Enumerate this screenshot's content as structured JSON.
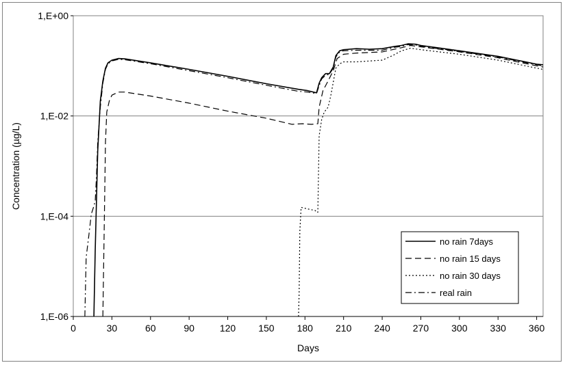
{
  "chart_data": {
    "type": "line",
    "title": "",
    "xlabel": "Days",
    "ylabel": "Concentration (µg/L)",
    "xlim": [
      0,
      365
    ],
    "ylim": [
      1e-06,
      1
    ],
    "y_scale": "log",
    "x_ticks": [
      "0",
      "30",
      "60",
      "90",
      "120",
      "150",
      "180",
      "210",
      "240",
      "270",
      "300",
      "330",
      "360"
    ],
    "y_ticks": [
      "1,E-06",
      "1,E-04",
      "1,E-02",
      "1,E+00"
    ],
    "y_tick_values": [
      1e-06,
      0.0001,
      0.01,
      1
    ],
    "grid": "horizontal",
    "legend_position": "right",
    "series": [
      {
        "name": "no rain 7days",
        "style": "solid",
        "width": 1.6,
        "points": [
          [
            16,
            1e-06
          ],
          [
            17,
            2e-05
          ],
          [
            19,
            0.002
          ],
          [
            21,
            0.02
          ],
          [
            23,
            0.05
          ],
          [
            25,
            0.09
          ],
          [
            27,
            0.115
          ],
          [
            30,
            0.13
          ],
          [
            35,
            0.14
          ],
          [
            40,
            0.138
          ],
          [
            60,
            0.115
          ],
          [
            90,
            0.085
          ],
          [
            120,
            0.062
          ],
          [
            150,
            0.044
          ],
          [
            175,
            0.034
          ],
          [
            182,
            0.032
          ],
          [
            189,
            0.029
          ],
          [
            191,
            0.045
          ],
          [
            193,
            0.058
          ],
          [
            196,
            0.07
          ],
          [
            199,
            0.07
          ],
          [
            202,
            0.095
          ],
          [
            204,
            0.16
          ],
          [
            207,
            0.2
          ],
          [
            210,
            0.21
          ],
          [
            220,
            0.22
          ],
          [
            230,
            0.215
          ],
          [
            240,
            0.22
          ],
          [
            250,
            0.245
          ],
          [
            255,
            0.255
          ],
          [
            260,
            0.275
          ],
          [
            266,
            0.27
          ],
          [
            270,
            0.255
          ],
          [
            300,
            0.2
          ],
          [
            330,
            0.155
          ],
          [
            360,
            0.108
          ],
          [
            365,
            0.105
          ]
        ]
      },
      {
        "name": "no rain 15 days",
        "style": "dashed",
        "width": 1.2,
        "points": [
          [
            23,
            1e-06
          ],
          [
            24,
            5e-05
          ],
          [
            25,
            0.003
          ],
          [
            26,
            0.012
          ],
          [
            28,
            0.02
          ],
          [
            30,
            0.026
          ],
          [
            35,
            0.03
          ],
          [
            40,
            0.03
          ],
          [
            60,
            0.025
          ],
          [
            90,
            0.018
          ],
          [
            120,
            0.0125
          ],
          [
            150,
            0.009
          ],
          [
            170,
            0.0068
          ],
          [
            178,
            0.007
          ],
          [
            185,
            0.0068
          ],
          [
            190,
            0.007
          ],
          [
            191,
            0.015
          ],
          [
            194,
            0.032
          ],
          [
            198,
            0.05
          ],
          [
            202,
            0.08
          ],
          [
            205,
            0.14
          ],
          [
            210,
            0.17
          ],
          [
            220,
            0.18
          ],
          [
            240,
            0.19
          ],
          [
            255,
            0.23
          ],
          [
            262,
            0.255
          ],
          [
            270,
            0.24
          ],
          [
            300,
            0.19
          ],
          [
            330,
            0.145
          ],
          [
            360,
            0.1
          ],
          [
            365,
            0.095
          ]
        ]
      },
      {
        "name": "no rain 30 days",
        "style": "dotted",
        "width": 1.2,
        "points": [
          [
            175,
            1e-06
          ],
          [
            175.5,
            3e-06
          ],
          [
            176,
            5e-05
          ],
          [
            177,
            0.00015
          ],
          [
            182,
            0.00014
          ],
          [
            188,
            0.00013
          ],
          [
            189,
            0.00012
          ],
          [
            190,
            0.00012
          ],
          [
            191,
            0.004
          ],
          [
            193,
            0.0085
          ],
          [
            195,
            0.012
          ],
          [
            198,
            0.015
          ],
          [
            200,
            0.025
          ],
          [
            204,
            0.09
          ],
          [
            207,
            0.11
          ],
          [
            210,
            0.12
          ],
          [
            220,
            0.12
          ],
          [
            240,
            0.13
          ],
          [
            248,
            0.16
          ],
          [
            255,
            0.2
          ],
          [
            262,
            0.225
          ],
          [
            270,
            0.21
          ],
          [
            300,
            0.17
          ],
          [
            330,
            0.13
          ],
          [
            360,
            0.09
          ],
          [
            365,
            0.085
          ]
        ]
      },
      {
        "name": "real rain",
        "style": "dashdot",
        "width": 1.2,
        "points": [
          [
            9,
            1e-06
          ],
          [
            10,
            1.5e-05
          ],
          [
            12,
            4e-05
          ],
          [
            14,
            0.00011
          ],
          [
            16,
            0.00016
          ],
          [
            17,
            0.0002
          ],
          [
            18,
            0.0006
          ],
          [
            19,
            0.003
          ],
          [
            21,
            0.015
          ],
          [
            23,
            0.045
          ],
          [
            25,
            0.085
          ],
          [
            27,
            0.11
          ],
          [
            30,
            0.125
          ],
          [
            35,
            0.135
          ],
          [
            40,
            0.133
          ],
          [
            60,
            0.11
          ],
          [
            90,
            0.08
          ],
          [
            120,
            0.058
          ],
          [
            150,
            0.041
          ],
          [
            175,
            0.031
          ],
          [
            182,
            0.03
          ],
          [
            189,
            0.028
          ],
          [
            191,
            0.04
          ],
          [
            193,
            0.055
          ],
          [
            196,
            0.065
          ],
          [
            199,
            0.068
          ],
          [
            202,
            0.09
          ],
          [
            204,
            0.15
          ],
          [
            207,
            0.19
          ],
          [
            210,
            0.2
          ],
          [
            220,
            0.205
          ],
          [
            240,
            0.205
          ],
          [
            250,
            0.235
          ],
          [
            255,
            0.245
          ],
          [
            260,
            0.265
          ],
          [
            266,
            0.26
          ],
          [
            270,
            0.245
          ],
          [
            300,
            0.195
          ],
          [
            330,
            0.15
          ],
          [
            360,
            0.105
          ],
          [
            365,
            0.1
          ]
        ]
      }
    ]
  }
}
